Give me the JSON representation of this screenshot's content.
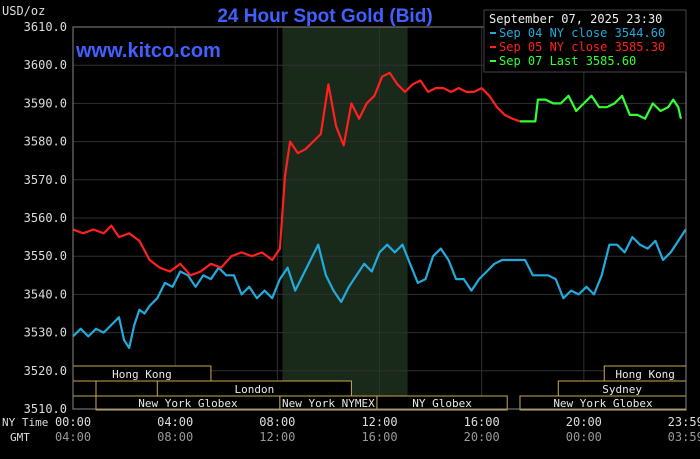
{
  "header": {
    "units": "USD/oz",
    "title": "24 Hour Spot Gold (Bid)",
    "watermark": "www.kitco.com",
    "date_stamp": "September 07, 2025 23:30"
  },
  "legend": [
    {
      "label": "Sep 04 NY close 3544.60",
      "color": "#22aadd"
    },
    {
      "label": "Sep 05 NY close 3585.30",
      "color": "#ff2020"
    },
    {
      "label": "Sep 07 Last 3585.60",
      "color": "#33ff33"
    }
  ],
  "axis_labels": {
    "row1": "NY Time",
    "row2": "GMT",
    "x_top": [
      "00:00",
      "04:00",
      "08:00",
      "12:00",
      "16:00",
      "20:00",
      "23:59"
    ],
    "x_bottom": [
      "04:00",
      "08:00",
      "12:00",
      "16:00",
      "20:00",
      "00:00",
      "03:59"
    ]
  },
  "sessions": {
    "row1": [
      {
        "label": "Hong Kong",
        "start": 0,
        "end": 5.4
      },
      {
        "label": "Hong Kong",
        "start": 20.8,
        "end": 24
      }
    ],
    "row2": [
      {
        "label": "",
        "start": 0,
        "end": 0.9
      },
      {
        "label": "London",
        "start": 3.3,
        "end": 10.9
      },
      {
        "label": "Sydney",
        "start": 19.0,
        "end": 24
      }
    ],
    "row3": [
      {
        "label": "New York Globex",
        "start": 0.9,
        "end": 8.1
      },
      {
        "label": "New York NYMEX",
        "start": 8.1,
        "end": 11.9
      },
      {
        "label": "NY Globex",
        "start": 11.9,
        "end": 17.0
      },
      {
        "label": "New York Globex",
        "start": 17.5,
        "end": 24
      }
    ]
  },
  "colors": {
    "background": "#000000",
    "grid": "#303030",
    "axis_text": "#dddddd",
    "title": "#4060ff",
    "highlight": "#1a2a1a"
  },
  "chart_data": {
    "type": "line",
    "title": "24 Hour Spot Gold (Bid)",
    "ylabel": "USD/oz",
    "xlabel": "NY Time",
    "ylim": [
      3510,
      3610
    ],
    "xlim": [
      0,
      24
    ],
    "yticks": [
      3510.0,
      3520.0,
      3530.0,
      3540.0,
      3550.0,
      3560.0,
      3570.0,
      3580.0,
      3590.0,
      3600.0,
      3610.0
    ],
    "highlight_range": [
      8.2,
      13.1
    ],
    "grid": true,
    "legend_position": "top-right",
    "series": [
      {
        "name": "Sep 04 NY close 3544.60",
        "color": "#22aadd",
        "x": [
          0,
          0.3,
          0.6,
          0.9,
          1.2,
          1.5,
          1.8,
          2.0,
          2.2,
          2.4,
          2.6,
          2.8,
          3.0,
          3.3,
          3.6,
          3.9,
          4.2,
          4.5,
          4.8,
          5.1,
          5.4,
          5.7,
          6.0,
          6.3,
          6.6,
          6.9,
          7.2,
          7.5,
          7.8,
          8.1,
          8.4,
          8.7,
          9.0,
          9.3,
          9.6,
          9.9,
          10.2,
          10.5,
          10.8,
          11.1,
          11.4,
          11.7,
          12.0,
          12.3,
          12.6,
          12.9,
          13.2,
          13.5,
          13.8,
          14.1,
          14.4,
          14.7,
          15.0,
          15.3,
          15.6,
          15.9,
          16.2,
          16.5,
          16.8,
          17.1,
          17.4,
          17.7,
          18.0,
          18.3,
          18.6,
          18.9,
          19.2,
          19.5,
          19.8,
          20.1,
          20.4,
          20.7,
          21.0,
          21.3,
          21.6,
          21.9,
          22.2,
          22.5,
          22.8,
          23.1,
          23.4,
          23.7,
          23.99
        ],
        "y": [
          3529,
          3531,
          3529,
          3531,
          3530,
          3532,
          3534,
          3528,
          3526,
          3532,
          3536,
          3535,
          3537,
          3539,
          3543,
          3542,
          3546,
          3545,
          3542,
          3545,
          3544,
          3547,
          3545,
          3545,
          3540,
          3542,
          3539,
          3541,
          3539,
          3544,
          3547,
          3541,
          3545,
          3549,
          3553,
          3545,
          3541,
          3538,
          3542,
          3545,
          3548,
          3546,
          3551,
          3553,
          3551,
          3553,
          3548,
          3543,
          3544,
          3550,
          3552,
          3549,
          3544,
          3544,
          3541,
          3544,
          3546,
          3548,
          3549,
          3549,
          3549,
          3549,
          3545,
          3545,
          3545,
          3544,
          3539,
          3541,
          3540,
          3542,
          3540,
          3545,
          3553,
          3553,
          3551,
          3555,
          3553,
          3552,
          3554,
          3549,
          3551,
          3554,
          3557
        ]
      },
      {
        "name": "Sep 05 NY close 3585.30",
        "color": "#ff2020",
        "x": [
          0,
          0.4,
          0.8,
          1.2,
          1.5,
          1.8,
          2.2,
          2.6,
          3.0,
          3.4,
          3.8,
          4.2,
          4.6,
          5.0,
          5.4,
          5.8,
          6.2,
          6.6,
          7.0,
          7.4,
          7.8,
          8.1,
          8.3,
          8.5,
          8.8,
          9.1,
          9.4,
          9.7,
          10.0,
          10.3,
          10.6,
          10.9,
          11.2,
          11.5,
          11.8,
          12.1,
          12.4,
          12.7,
          13.0,
          13.3,
          13.6,
          13.9,
          14.2,
          14.5,
          14.8,
          15.1,
          15.4,
          15.7,
          16.0,
          16.3,
          16.6,
          16.9,
          17.2,
          17.5
        ],
        "y": [
          3557,
          3556,
          3557,
          3556,
          3558,
          3555,
          3556,
          3554,
          3549,
          3547,
          3546,
          3548,
          3545,
          3546,
          3548,
          3547,
          3550,
          3551,
          3550,
          3551,
          3549,
          3552,
          3571,
          3580,
          3577,
          3578,
          3580,
          3582,
          3595,
          3584,
          3579,
          3590,
          3586,
          3590,
          3592,
          3597,
          3598,
          3595,
          3593,
          3595,
          3596,
          3593,
          3594,
          3594,
          3593,
          3594,
          3593,
          3593,
          3594,
          3592,
          3589,
          3587,
          3586,
          3585.3
        ]
      },
      {
        "name": "Sep 07 Last 3585.60",
        "color": "#33ff33",
        "x": [
          17.5,
          17.8,
          18.1,
          18.2,
          18.5,
          18.8,
          19.1,
          19.4,
          19.7,
          20.0,
          20.3,
          20.6,
          20.9,
          21.2,
          21.5,
          21.8,
          22.1,
          22.4,
          22.7,
          23.0,
          23.3,
          23.5,
          23.7,
          23.8
        ],
        "y": [
          3585.3,
          3585.3,
          3585.3,
          3591,
          3591,
          3590,
          3590,
          3592,
          3588,
          3590,
          3592,
          3589,
          3589,
          3590,
          3592,
          3587,
          3587,
          3586,
          3590,
          3588,
          3589,
          3591,
          3589,
          3586
        ]
      }
    ]
  }
}
